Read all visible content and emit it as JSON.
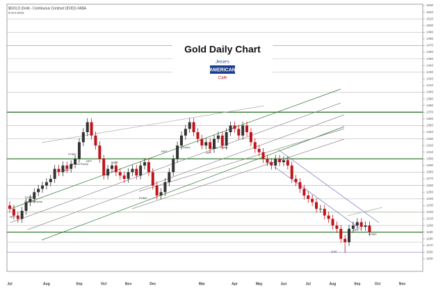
{
  "chart_data": {
    "type": "candlestick",
    "title": "Gold Daily Chart",
    "subtitle": "$GOLD (Gold - Continuous Contract (EOD)) #ABA",
    "date_line": "9-Oct-2018",
    "logo_top": "Jesse's",
    "logo_main": "AMERICAN",
    "logo_bottom": "Cafe",
    "categories": [
      "Jul",
      null,
      null,
      null,
      null,
      null,
      null,
      null,
      null,
      "Aug",
      null,
      null,
      null,
      null,
      null,
      null,
      null,
      "Sep",
      null,
      null,
      null,
      null,
      null,
      "Oct",
      null,
      null,
      null,
      null,
      null,
      "Nov",
      null,
      null,
      null,
      null,
      null,
      "Dec",
      null,
      null,
      null,
      null,
      null,
      null,
      null,
      null,
      null,
      null,
      null,
      "Mar",
      null,
      null,
      null,
      null,
      null,
      null,
      null,
      "Apr",
      null,
      null,
      null,
      null,
      null,
      "May",
      null,
      null,
      null,
      null,
      null,
      "Jun",
      null,
      null,
      null,
      null,
      null,
      "Jul",
      null,
      null,
      null,
      null,
      null,
      "Aug",
      null,
      null,
      null,
      null,
      null,
      "Sep",
      null,
      null,
      null,
      null,
      "Oct",
      null,
      null,
      null,
      null,
      null,
      "Nov",
      null,
      null,
      null
    ],
    "open": [
      1230,
      1225,
      1215,
      1210,
      1222,
      1235,
      1240,
      1250,
      1255,
      1260,
      1265,
      1270,
      1285,
      1280,
      1290,
      1285,
      1292,
      1300,
      1325,
      1340,
      1355,
      1335,
      1320,
      1300,
      1275,
      1285,
      1290,
      1280,
      1275,
      1270,
      1280,
      1285,
      1275,
      1290,
      1295,
      1280,
      1260,
      1245,
      1250,
      1265,
      1280,
      1300,
      1320,
      1335,
      1345,
      1355,
      1340,
      1330,
      1320,
      1325,
      1315,
      1330,
      1335,
      1320,
      1340,
      1350,
      1345,
      1335,
      1350,
      1340,
      1325,
      1315,
      1310,
      1300,
      1295,
      1290,
      1300,
      1295,
      1298,
      1290,
      1270,
      1265,
      1255,
      1245,
      1240,
      1235,
      1225,
      1225,
      1215,
      1210,
      1200,
      1195,
      1180,
      1175,
      1195,
      1200,
      1205,
      1198,
      1200,
      null,
      null,
      null,
      null,
      null,
      null,
      null,
      null,
      null,
      null,
      null
    ],
    "high": [
      1236,
      1231,
      1221,
      1228,
      1241,
      1246,
      1256,
      1261,
      1266,
      1271,
      1276,
      1291,
      1291,
      1296,
      1296,
      1298,
      1306,
      1331,
      1346,
      1361,
      1361,
      1341,
      1326,
      1306,
      1291,
      1296,
      1296,
      1286,
      1281,
      1286,
      1291,
      1291,
      1296,
      1301,
      1301,
      1286,
      1266,
      1256,
      1271,
      1286,
      1306,
      1326,
      1341,
      1351,
      1361,
      1361,
      1346,
      1336,
      1331,
      1331,
      1336,
      1341,
      1341,
      1346,
      1356,
      1356,
      1351,
      1356,
      1356,
      1346,
      1331,
      1321,
      1316,
      1306,
      1301,
      1306,
      1306,
      1304,
      1304,
      1296,
      1276,
      1271,
      1261,
      1251,
      1246,
      1241,
      1231,
      1231,
      1221,
      1216,
      1206,
      1201,
      1186,
      1201,
      1206,
      1211,
      1211,
      1206,
      1206,
      null,
      null,
      null,
      null,
      null,
      null,
      null,
      null,
      null,
      null,
      null
    ],
    "low": [
      1219,
      1209,
      1204,
      1204,
      1216,
      1229,
      1234,
      1244,
      1249,
      1254,
      1259,
      1264,
      1274,
      1274,
      1279,
      1279,
      1286,
      1294,
      1319,
      1334,
      1329,
      1314,
      1294,
      1269,
      1269,
      1279,
      1274,
      1269,
      1264,
      1264,
      1274,
      1269,
      1269,
      1284,
      1274,
      1254,
      1239,
      1239,
      1244,
      1259,
      1274,
      1294,
      1314,
      1329,
      1339,
      1334,
      1324,
      1314,
      1314,
      1309,
      1309,
      1324,
      1314,
      1314,
      1334,
      1339,
      1329,
      1329,
      1334,
      1319,
      1309,
      1304,
      1294,
      1289,
      1284,
      1284,
      1289,
      1289,
      1284,
      1264,
      1259,
      1249,
      1239,
      1234,
      1229,
      1219,
      1219,
      1209,
      1204,
      1194,
      1189,
      1174,
      1159,
      1169,
      1189,
      1194,
      1192,
      1192,
      1184,
      null,
      null,
      null,
      null,
      null,
      null,
      null,
      null,
      null,
      null,
      null
    ],
    "close": [
      1225,
      1215,
      1210,
      1222,
      1235,
      1240,
      1250,
      1255,
      1260,
      1265,
      1270,
      1285,
      1280,
      1290,
      1285,
      1292,
      1300,
      1325,
      1340,
      1355,
      1335,
      1320,
      1300,
      1275,
      1285,
      1290,
      1280,
      1275,
      1270,
      1280,
      1285,
      1275,
      1290,
      1295,
      1280,
      1260,
      1245,
      1250,
      1265,
      1280,
      1300,
      1320,
      1335,
      1345,
      1355,
      1340,
      1330,
      1320,
      1325,
      1315,
      1330,
      1335,
      1320,
      1340,
      1350,
      1345,
      1335,
      1350,
      1340,
      1325,
      1315,
      1310,
      1300,
      1295,
      1290,
      1300,
      1295,
      1298,
      1290,
      1270,
      1265,
      1255,
      1245,
      1240,
      1235,
      1225,
      1225,
      1215,
      1210,
      1200,
      1195,
      1180,
      1175,
      1195,
      1200,
      1205,
      1198,
      1200,
      1190,
      null,
      null,
      null,
      null,
      null,
      null,
      null,
      null,
      null,
      null,
      null
    ],
    "up_color": "#333333",
    "down_color": "#c0141c",
    "ylim": [
      1150,
      1530
    ],
    "yticks": [
      1150,
      1160,
      1170,
      1180,
      1190,
      1200,
      1210,
      1220,
      1230,
      1240,
      1250,
      1260,
      1270,
      1280,
      1290,
      1300,
      1310,
      1320,
      1330,
      1340,
      1350,
      1360,
      1370,
      1380,
      1390,
      1400,
      1410,
      1420,
      1430,
      1440,
      1450,
      1460,
      1470,
      1480,
      1490,
      1500,
      1510,
      1520,
      1530
    ],
    "levels": [
      {
        "value": 1510,
        "color": "#bbbbbb"
      },
      {
        "value": 1490,
        "color": "#bbbbbb"
      },
      {
        "value": 1470,
        "color": "#7aa86e"
      },
      {
        "value": 1450,
        "color": "#bbbbbb"
      },
      {
        "value": 1430,
        "color": "#bbbbbb"
      },
      {
        "value": 1400,
        "color": "#bbbbbb"
      },
      {
        "value": 1370,
        "color": "#1d6b1d"
      },
      {
        "value": 1350,
        "color": "#d9a0a0"
      },
      {
        "value": 1330,
        "color": "#bbbbbb"
      },
      {
        "value": 1300,
        "color": "#1d6b1d"
      },
      {
        "value": 1280,
        "color": "#bbbbbb"
      },
      {
        "value": 1260,
        "color": "#7aa86e"
      },
      {
        "value": 1240,
        "color": "#bbbbbb"
      },
      {
        "value": 1220,
        "color": "#7aa86e"
      },
      {
        "value": 1200,
        "color": "#bbbbbb"
      },
      {
        "value": 1190,
        "color": "#1d6b1d"
      },
      {
        "value": 1175,
        "color": "#bbbbbb"
      },
      {
        "value": 1160,
        "color": "#8080d0"
      }
    ],
    "annotations": [
      "NFP",
      "FOMC",
      "Options Expiry",
      "NFP",
      "FOMC",
      "NFP",
      "Options Expiry",
      "NFP",
      "FOMC",
      "NFP",
      "Expiry",
      "FOMC",
      "NFP",
      "Expiry",
      "NFP",
      "1159",
      "NFP",
      "FOMC"
    ]
  }
}
